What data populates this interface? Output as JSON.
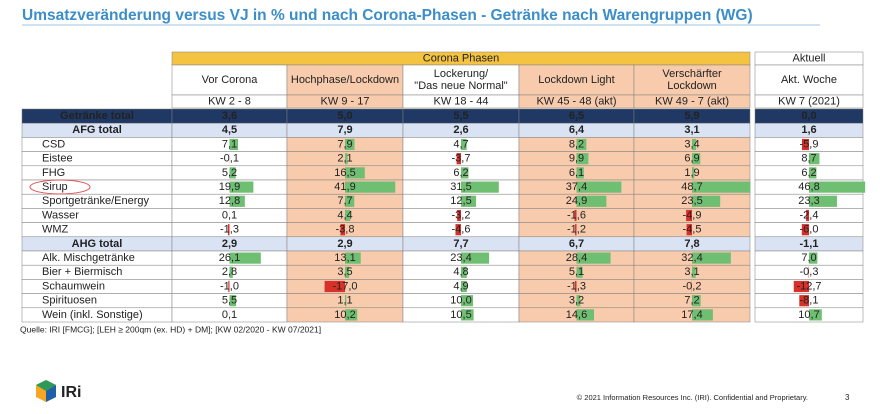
{
  "title": "Umsatzveränderung versus VJ in % und nach Corona-Phasen - Getränke nach Warengruppen (WG)",
  "table": {
    "corona_header": "Corona Phasen",
    "current_header": "Aktuell",
    "columns": [
      {
        "name_lines": [
          "Vor Corona"
        ],
        "period": "KW 2 - 8"
      },
      {
        "name_lines": [
          "Hochphase/Lockdown"
        ],
        "period": "KW 9 - 17"
      },
      {
        "name_lines": [
          "Lockerung/",
          "\"Das neue Normal\""
        ],
        "period": "KW 18 - 44"
      },
      {
        "name_lines": [
          "Lockdown Light"
        ],
        "period": "KW 45 - 48 (akt)"
      },
      {
        "name_lines": [
          "Verschärfter",
          "Lockdown"
        ],
        "period": "KW 49 - 7 (akt)"
      },
      {
        "name_lines": [
          "Akt. Woche"
        ],
        "period": "KW 7 (2021)"
      }
    ],
    "grand_total": {
      "label": "Getränke total",
      "values": [
        "3,6",
        "5,0",
        "5,5",
        "6,5",
        "5,9",
        "0,0"
      ]
    },
    "groups": [
      {
        "label": "AFG total",
        "values": [
          "4,5",
          "7,9",
          "2,6",
          "6,4",
          "3,1",
          "1,6"
        ],
        "items": [
          {
            "label": "CSD",
            "values": [
              "7,1",
              "7,9",
              "4,7",
              "8,2",
              "3,4",
              "-5,9"
            ]
          },
          {
            "label": "Eistee",
            "values": [
              "-0,1",
              "2,1",
              "-3,7",
              "9,9",
              "6,9",
              "8,7"
            ]
          },
          {
            "label": "FHG",
            "values": [
              "5,2",
              "16,5",
              "6,2",
              "6,1",
              "1,9",
              "6,2"
            ]
          },
          {
            "label": "Sirup",
            "values": [
              "19,9",
              "41,9",
              "31,5",
              "37,4",
              "48,7",
              "46,8"
            ]
          },
          {
            "label": "Sportgetränke/Energy",
            "values": [
              "12,8",
              "7,7",
              "12,5",
              "24,9",
              "23,5",
              "23,3"
            ]
          },
          {
            "label": "Wasser",
            "values": [
              "0,1",
              "4,4",
              "-3,2",
              "-1,6",
              "-4,9",
              "-2,4"
            ]
          },
          {
            "label": "WMZ",
            "values": [
              "-1,3",
              "-3,8",
              "-4,6",
              "-1,2",
              "-4,5",
              "-6,0"
            ]
          }
        ]
      },
      {
        "label": "AHG total",
        "values": [
          "2,9",
          "2,9",
          "7,7",
          "6,7",
          "7,8",
          "-1,1"
        ],
        "items": [
          {
            "label": "Alk. Mischgetränke",
            "values": [
              "26,1",
              "13,1",
              "23,4",
              "28,4",
              "32,4",
              "7,0"
            ]
          },
          {
            "label": "Bier + Biermisch",
            "values": [
              "2,8",
              "3,5",
              "4,8",
              "5,1",
              "3,1",
              "-0,3"
            ]
          },
          {
            "label": "Schaumwein",
            "values": [
              "-1,0",
              "-17,0",
              "4,9",
              "-1,3",
              "-0,2",
              "-12,7"
            ]
          },
          {
            "label": "Spirituosen",
            "values": [
              "5,5",
              "1,1",
              "10,0",
              "3,2",
              "7,2",
              "-8,1"
            ]
          },
          {
            "label": "Wein (inkl. Sonstige)",
            "values": [
              "0,1",
              "10,2",
              "10,5",
              "14,6",
              "17,4",
              "10,7"
            ]
          }
        ]
      }
    ]
  },
  "source": "Quelle: IRI [FMCG]; [LEH ≥ 200qm (ex. HD) + DM]; [KW 02/2020 - KW 07/2021]",
  "logo": "IRi",
  "copyright": "© 2021 Information Resources Inc. (IRI). Confidential and Proprietary.",
  "page_number": "3"
}
